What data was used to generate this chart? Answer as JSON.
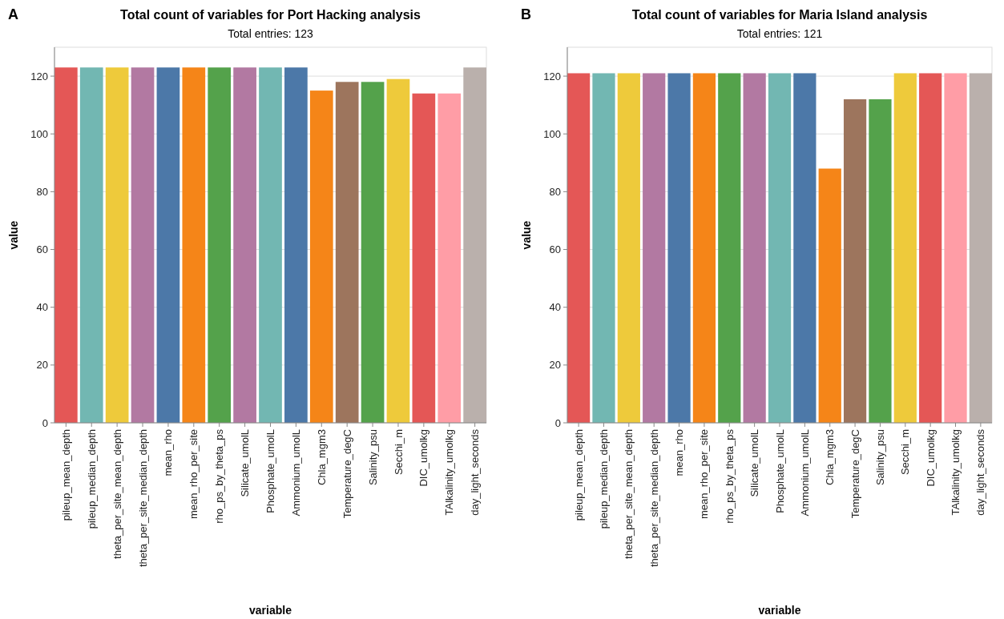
{
  "chart_data": [
    {
      "type": "bar",
      "title": "Total count of variables for Port Hacking analysis",
      "subtitle": "Total entries: 123",
      "xlabel": "variable",
      "ylabel": "value",
      "annotations": [
        "A"
      ],
      "categories": [
        "pileup_mean_depth",
        "pileup_median_depth",
        "theta_per_site_mean_depth",
        "theta_per_site_median_depth",
        "mean_rho",
        "mean_rho_per_site",
        "rho_ps_by_theta_ps",
        "Silicate_umolL",
        "Phosphate_umolL",
        "Ammonium_umolL",
        "Chla_mgm3",
        "Temperature_degC",
        "Salinity_psu",
        "Secchi_m",
        "DIC_umolkg",
        "TAlkalinity_umolkg",
        "day_light_seconds"
      ],
      "values": [
        123,
        123,
        123,
        123,
        123,
        123,
        123,
        123,
        123,
        123,
        115,
        118,
        118,
        119,
        114,
        114,
        123
      ],
      "colors": [
        "#e45756",
        "#72b7b2",
        "#eeca3b",
        "#b279a2",
        "#4c78a8",
        "#f58518",
        "#54a24b",
        "#b279a2",
        "#72b7b2",
        "#4c78a8",
        "#f58518",
        "#9d755d",
        "#54a24b",
        "#eeca3b",
        "#e45756",
        "#ff9da6",
        "#bab0ac"
      ],
      "ylim": [
        0,
        130
      ],
      "yticks": [
        0,
        20,
        40,
        60,
        80,
        100,
        120
      ],
      "grid": "y"
    },
    {
      "type": "bar",
      "title": "Total count of variables for Maria Island analysis",
      "subtitle": "Total entries: 121",
      "xlabel": "variable",
      "ylabel": "value",
      "annotations": [
        "B"
      ],
      "categories": [
        "pileup_mean_depth",
        "pileup_median_depth",
        "theta_per_site_mean_depth",
        "theta_per_site_median_depth",
        "mean_rho",
        "mean_rho_per_site",
        "rho_ps_by_theta_ps",
        "Silicate_umolL",
        "Phosphate_umolL",
        "Ammonium_umolL",
        "Chla_mgm3",
        "Temperature_degC",
        "Salinity_psu",
        "Secchi_m",
        "DIC_umolkg",
        "TAlkalinity_umolkg",
        "day_light_seconds"
      ],
      "values": [
        121,
        121,
        121,
        121,
        121,
        121,
        121,
        121,
        121,
        121,
        88,
        112,
        112,
        121,
        121,
        121,
        121
      ],
      "colors": [
        "#e45756",
        "#72b7b2",
        "#eeca3b",
        "#b279a2",
        "#4c78a8",
        "#f58518",
        "#54a24b",
        "#b279a2",
        "#72b7b2",
        "#4c78a8",
        "#f58518",
        "#9d755d",
        "#54a24b",
        "#eeca3b",
        "#e45756",
        "#ff9da6",
        "#bab0ac"
      ],
      "ylim": [
        0,
        130
      ],
      "yticks": [
        0,
        20,
        40,
        60,
        80,
        100,
        120
      ],
      "grid": "y"
    }
  ]
}
